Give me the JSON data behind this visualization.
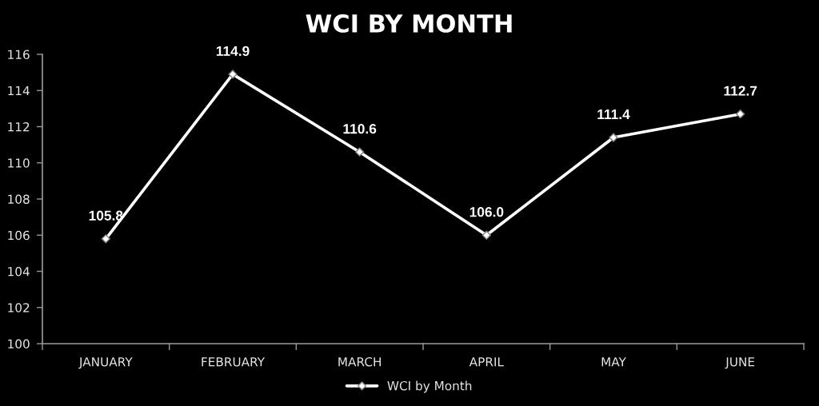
{
  "chart_data": {
    "type": "line",
    "title": "WCI BY MONTH",
    "categories": [
      "JANUARY",
      "FEBRUARY",
      "MARCH",
      "APRIL",
      "MAY",
      "JUNE"
    ],
    "series": [
      {
        "name": "WCI by Month",
        "color": "#ffffff",
        "values": [
          105.8,
          114.9,
          110.6,
          106.0,
          111.4,
          112.7
        ],
        "value_labels": [
          "105.8",
          "114.9",
          "110.6",
          "106.0",
          "111.4",
          "112.7"
        ]
      }
    ],
    "ylim": [
      100,
      116
    ],
    "yticks": [
      100,
      102,
      104,
      106,
      108,
      110,
      112,
      114,
      116
    ],
    "grid": false,
    "legend": "bottom",
    "marker": "diamond",
    "line_style": "solid"
  }
}
